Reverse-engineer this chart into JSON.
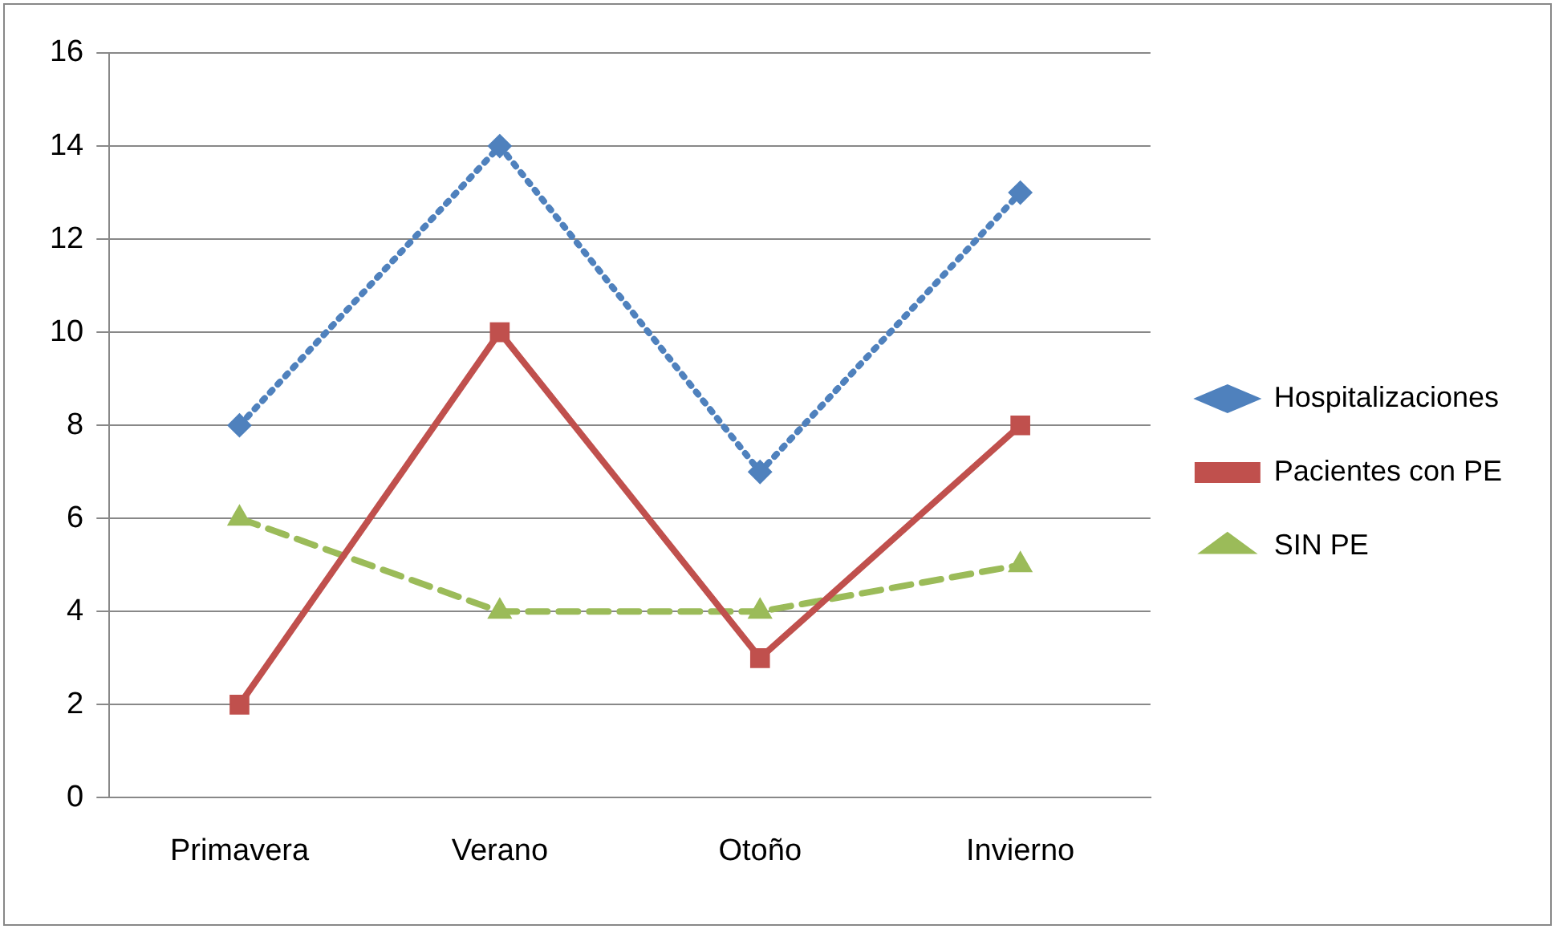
{
  "chart_data": {
    "type": "line",
    "categories": [
      "Primavera",
      "Verano",
      "Otoño",
      "Invierno"
    ],
    "series": [
      {
        "name": "Hospitalizaciones",
        "color": "#4f81bd",
        "values": [
          8,
          14,
          7,
          13
        ],
        "marker": "diamond",
        "line_style": "dotted"
      },
      {
        "name": "Pacientes con PE",
        "color": "#c0504d",
        "values": [
          2,
          10,
          3,
          8
        ],
        "marker": "square",
        "line_style": "solid"
      },
      {
        "name": "SIN PE",
        "color": "#9bbb59",
        "values": [
          6,
          4,
          4,
          5
        ],
        "marker": "triangle",
        "line_style": "dashed"
      }
    ],
    "ylim": [
      0,
      16
    ],
    "yticks": [
      0,
      2,
      4,
      6,
      8,
      10,
      12,
      14,
      16
    ],
    "grid": "y",
    "legend": "right"
  }
}
